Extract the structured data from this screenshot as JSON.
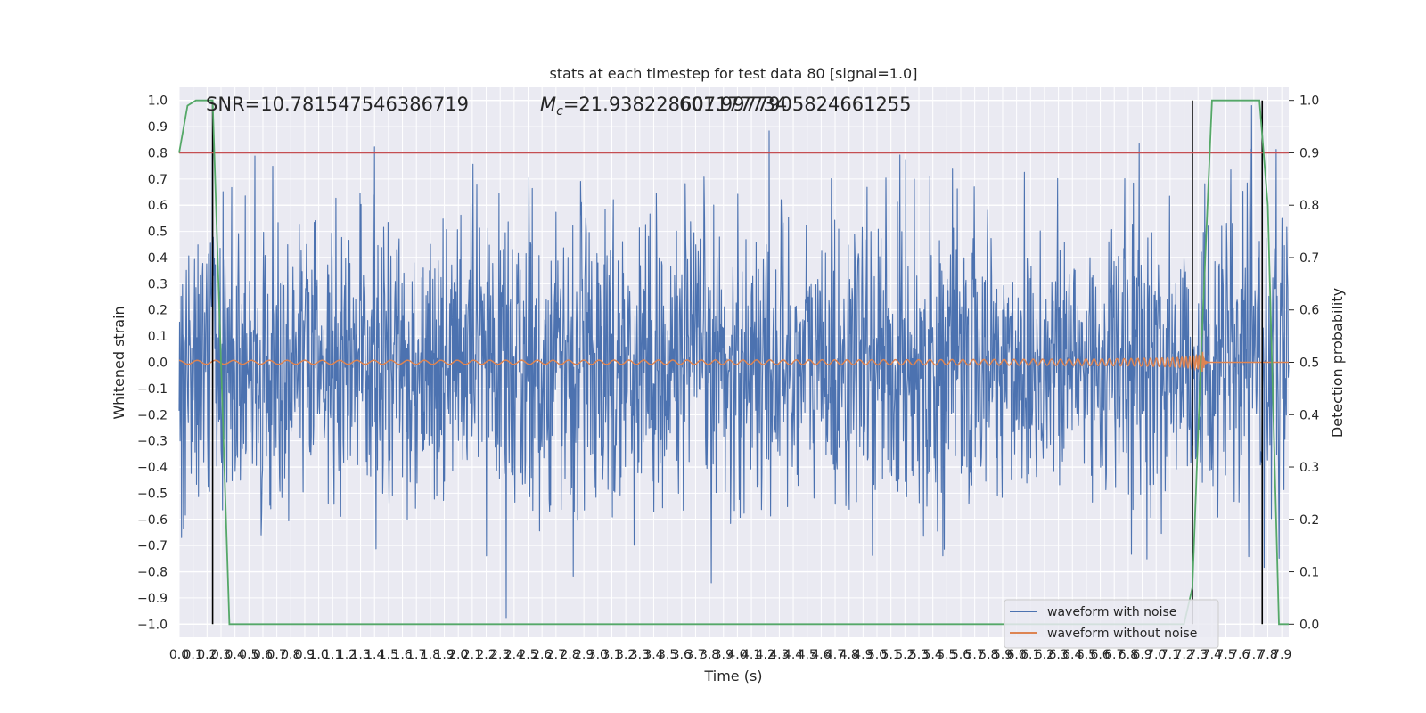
{
  "chart_data": {
    "type": "line",
    "title": "stats at each timestep for test data 80 [signal=1.0]",
    "xlabel": "Time (s)",
    "ylabel_left": "Whitened strain",
    "ylabel_right": "Detection probability",
    "annotations": {
      "snr": "SNR=10.781547546386719",
      "mc_label": "M",
      "mc_sub": "c",
      "mc_value": "=21.938228607177734",
      "overlap_value": "601.9977905824661255"
    },
    "xlim": [
      0.0,
      7.95
    ],
    "ylim_left": [
      -1.05,
      1.05
    ],
    "ylim_right": [
      -0.025,
      1.025
    ],
    "x_ticks": [
      0.0,
      0.1,
      0.2,
      0.3,
      0.4,
      0.5,
      0.6,
      0.7,
      0.8,
      0.9,
      1.0,
      1.1,
      1.2,
      1.3,
      1.4,
      1.5,
      1.6,
      1.7,
      1.8,
      1.9,
      2.0,
      2.1,
      2.2,
      2.3,
      2.4,
      2.5,
      2.6,
      2.7,
      2.8,
      2.9,
      3.0,
      3.1,
      3.2,
      3.3,
      3.4,
      3.5,
      3.6,
      3.7,
      3.8,
      3.9,
      4.0,
      4.1,
      4.2,
      4.3,
      4.4,
      4.5,
      4.6,
      4.7,
      4.8,
      4.9,
      5.0,
      5.1,
      5.2,
      5.3,
      5.4,
      5.5,
      5.6,
      5.7,
      5.8,
      5.9,
      6.0,
      6.1,
      6.2,
      6.3,
      6.4,
      6.5,
      6.6,
      6.7,
      6.8,
      6.9,
      7.0,
      7.1,
      7.2,
      7.3,
      7.4,
      7.5,
      7.6,
      7.7,
      7.8,
      7.9
    ],
    "y_ticks_left": [
      1.0,
      0.9,
      0.8,
      0.7,
      0.6,
      0.5,
      0.4,
      0.3,
      0.2,
      0.1,
      0.0,
      -0.1,
      -0.2,
      -0.3,
      -0.4,
      -0.5,
      -0.6,
      -0.7,
      -0.8,
      -0.9,
      -1.0
    ],
    "y_ticks_right": [
      1.0,
      0.9,
      0.8,
      0.7,
      0.6,
      0.5,
      0.4,
      0.3,
      0.2,
      0.1,
      0.0
    ],
    "threshold_right": 0.9,
    "vertical_lines_x": [
      0.24,
      7.26,
      7.76
    ],
    "merger_time": 7.34,
    "detection_probability": {
      "x": [
        0.0,
        0.06,
        0.12,
        0.24,
        0.36,
        7.2,
        7.26,
        7.32,
        7.4,
        7.52,
        7.64,
        7.74,
        7.8,
        7.88,
        7.95
      ],
      "y": [
        0.9,
        0.99,
        1.0,
        1.0,
        0.0,
        0.0,
        0.07,
        0.5,
        1.0,
        1.0,
        1.0,
        1.0,
        0.8,
        0.0,
        0.0
      ]
    },
    "series": [
      {
        "name": "waveform with noise",
        "color": "#4c72b0"
      },
      {
        "name": "waveform without noise",
        "color": "#dd8452"
      }
    ],
    "probability_color": "#55a868",
    "threshold_color": "#c44e52",
    "event_line_color": "#000000",
    "grid": true,
    "legend_position": "lower right"
  }
}
